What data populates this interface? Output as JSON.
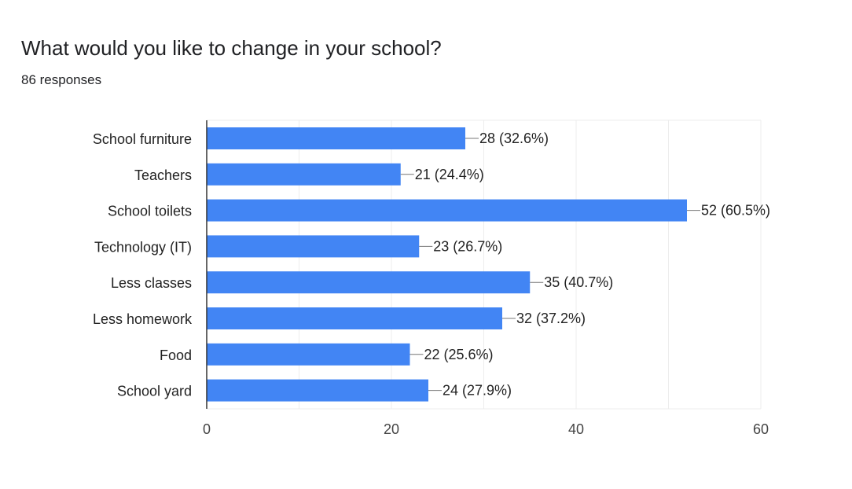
{
  "header": {
    "title": "What would you like to change in your school?",
    "subtitle": "86 responses"
  },
  "chart_data": {
    "type": "bar",
    "orientation": "horizontal",
    "categories": [
      "School furniture",
      "Teachers",
      "School toilets",
      "Technology (IT)",
      "Less classes",
      "Less homework",
      "Food",
      "School yard"
    ],
    "values": [
      28,
      21,
      52,
      23,
      35,
      32,
      22,
      24
    ],
    "data_labels": [
      "28 (32.6%)",
      "21 (24.4%)",
      "52 (60.5%)",
      "23 (26.7%)",
      "35 (40.7%)",
      "32 (37.2%)",
      "22 (25.6%)",
      "24 (27.9%)"
    ],
    "xlim": [
      0,
      60
    ],
    "xticks": [
      0,
      20,
      40,
      60
    ],
    "xtick_labels": [
      "0",
      "20",
      "40",
      "60"
    ],
    "grid": true,
    "bar_color": "#4285f4"
  }
}
